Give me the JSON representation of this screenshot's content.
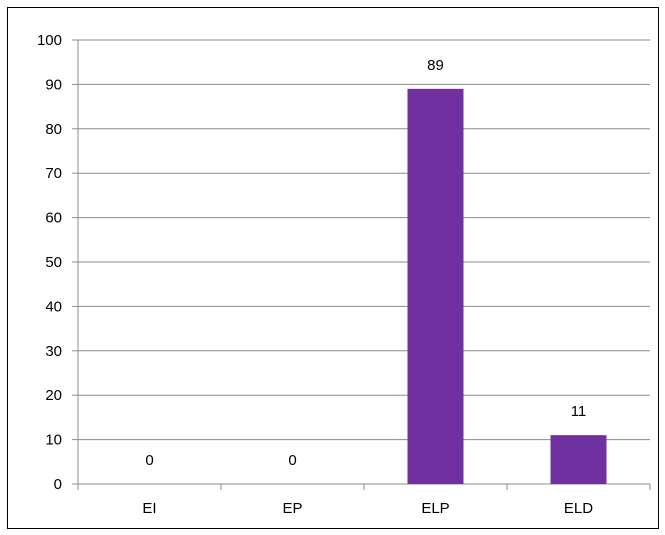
{
  "chart_data": {
    "type": "bar",
    "title": "",
    "xlabel": "",
    "ylabel": "",
    "categories": [
      "EI",
      "EP",
      "ELP",
      "ELD"
    ],
    "values": [
      0,
      0,
      89,
      11
    ],
    "data_labels": [
      "0",
      "0",
      "89",
      "11"
    ],
    "ylim": [
      0,
      100
    ],
    "yticks": [
      0,
      10,
      20,
      30,
      40,
      50,
      60,
      70,
      80,
      90,
      100
    ],
    "ytick_labels": [
      "0",
      "10",
      "20",
      "30",
      "40",
      "50",
      "60",
      "70",
      "80",
      "90",
      "100"
    ],
    "grid": true,
    "legend": "none",
    "bar_color": "#7030A0",
    "grid_color": "#8C8C8C"
  }
}
